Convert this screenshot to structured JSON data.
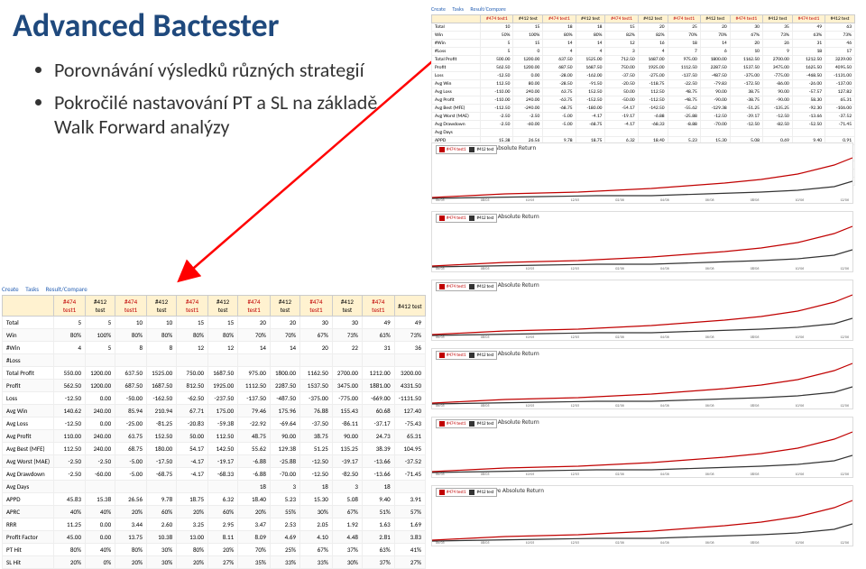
{
  "title": "Advanced Bactester",
  "bullets": [
    "Porovnávání výsledků různých strategií",
    "Pokročilé nastavování PT a SL na základě Walk Forward analýzy"
  ],
  "tabs": [
    "Create",
    "Tasks",
    "Result/Compare"
  ],
  "headers": [
    {
      "t": "#474 test1",
      "c": "red"
    },
    {
      "t": "#412 test",
      "c": "blk"
    },
    {
      "t": "#474 test1",
      "c": "red"
    },
    {
      "t": "#412 test",
      "c": "blk"
    },
    {
      "t": "#474 test1",
      "c": "red"
    },
    {
      "t": "#412 test",
      "c": "blk"
    },
    {
      "t": "#474 test1",
      "c": "red"
    },
    {
      "t": "#412 test",
      "c": "blk"
    },
    {
      "t": "#474 test1",
      "c": "red"
    },
    {
      "t": "#412 test",
      "c": "blk"
    },
    {
      "t": "#474 test1",
      "c": "red"
    },
    {
      "t": "#412 test",
      "c": "blk"
    }
  ],
  "big_rows": [
    {
      "l": "Total",
      "v": [
        "5",
        "5",
        "10",
        "10",
        "15",
        "15",
        "20",
        "20",
        "30",
        "30",
        "49",
        "49"
      ]
    },
    {
      "l": "Win",
      "v": [
        "80%",
        "100%",
        "80%",
        "80%",
        "80%",
        "80%",
        "70%",
        "70%",
        "67%",
        "73%",
        "63%",
        "73%"
      ]
    },
    {
      "l": "#Win",
      "v": [
        "4",
        "5",
        "8",
        "8",
        "12",
        "12",
        "14",
        "14",
        "20",
        "22",
        "31",
        "36"
      ]
    },
    {
      "l": "#Loss",
      "v": [
        "",
        "",
        "",
        "",
        "",
        "",
        "",
        "",
        "",
        "",
        "",
        ""
      ]
    },
    {
      "l": "Total Profit",
      "v": [
        "550.00",
        "1200.00",
        "637.50",
        "1525.00",
        "750.00",
        "1687.50",
        "975.00",
        "1800.00",
        "1162.50",
        "2700.00",
        "1212.00",
        "3200.00"
      ]
    },
    {
      "l": "Profit",
      "v": [
        "562.50",
        "1200.00",
        "687.50",
        "1687.50",
        "812.50",
        "1925.00",
        "1112.50",
        "2287.50",
        "1537.50",
        "3475.00",
        "1881.00",
        "4331.50"
      ]
    },
    {
      "l": "Loss",
      "v": [
        "-12.50",
        "0.00",
        "-50.00",
        "-162.50",
        "-62.50",
        "-237.50",
        "-137.50",
        "-487.50",
        "-375.00",
        "-775.00",
        "-669.00",
        "-1131.50"
      ]
    },
    {
      "l": "Avg Win",
      "v": [
        "140.62",
        "240.00",
        "85.94",
        "210.94",
        "67.71",
        "175.00",
        "79.46",
        "175.96",
        "76.88",
        "155.43",
        "60.68",
        "127.40"
      ]
    },
    {
      "l": "Avg Loss",
      "v": [
        "-12.50",
        "0.00",
        "-25.00",
        "-81.25",
        "-20.83",
        "-59.38",
        "-22.92",
        "-69.64",
        "-37.50",
        "-86.11",
        "-37.17",
        "-75.43"
      ]
    },
    {
      "l": "Avg Profit",
      "v": [
        "110.00",
        "240.00",
        "63.75",
        "152.50",
        "50.00",
        "112.50",
        "48.75",
        "90.00",
        "38.75",
        "90.00",
        "24.73",
        "65.31"
      ]
    },
    {
      "l": "Avg Best (MFE)",
      "v": [
        "112.50",
        "240.00",
        "68.75",
        "180.00",
        "54.17",
        "142.50",
        "55.62",
        "129.38",
        "51.25",
        "135.25",
        "38.39",
        "104.95"
      ]
    },
    {
      "l": "Avg Worst (MAE)",
      "v": [
        "-2.50",
        "-2.50",
        "-5.00",
        "-17.50",
        "-4.17",
        "-19.17",
        "-6.88",
        "-25.88",
        "-12.50",
        "-39.17",
        "-13.66",
        "-37.52"
      ]
    },
    {
      "l": "Avg Drawdown",
      "v": [
        "-2.50",
        "-60.00",
        "-5.00",
        "-68.75",
        "-4.17",
        "-68.33",
        "-6.88",
        "-70.00",
        "-12.50",
        "-82.50",
        "-13.66",
        "-71.45"
      ]
    },
    {
      "l": "Avg Days",
      "v": [
        "",
        "",
        "",
        "",
        "",
        "",
        "18",
        "3",
        "18",
        "3",
        "18",
        ""
      ]
    },
    {
      "l": "APPD",
      "v": [
        "45.83",
        "15.38",
        "26.56",
        "9.78",
        "18.75",
        "6.32",
        "18.40",
        "5.23",
        "15.30",
        "5.08",
        "9.40",
        "3.91"
      ]
    },
    {
      "l": "APRC",
      "v": [
        "40%",
        "40%",
        "20%",
        "60%",
        "20%",
        "60%",
        "20%",
        "55%",
        "30%",
        "67%",
        "51%",
        "57%"
      ]
    },
    {
      "l": "RRR",
      "v": [
        "11.25",
        "0.00",
        "3.44",
        "2.60",
        "3.25",
        "2.95",
        "3.47",
        "2.53",
        "2.05",
        "1.92",
        "1.63",
        "1.69"
      ]
    },
    {
      "l": "Profit Factor",
      "v": [
        "45.00",
        "0.00",
        "13.75",
        "10.38",
        "13.00",
        "8.11",
        "8.09",
        "4.69",
        "4.10",
        "4.48",
        "2.81",
        "3.83"
      ]
    },
    {
      "l": "PT Hit",
      "v": [
        "80%",
        "40%",
        "80%",
        "30%",
        "80%",
        "20%",
        "70%",
        "25%",
        "67%",
        "37%",
        "63%",
        "41%"
      ]
    },
    {
      "l": "SL Hit",
      "v": [
        "20%",
        "0%",
        "20%",
        "30%",
        "20%",
        "27%",
        "35%",
        "33%",
        "33%",
        "30%",
        "37%",
        "27%"
      ]
    }
  ],
  "small_rows": [
    {
      "l": "Total",
      "v": [
        "10",
        "15",
        "18",
        "18",
        "15",
        "20",
        "25",
        "20",
        "30",
        "35",
        "49",
        "63"
      ]
    },
    {
      "l": "Win",
      "v": [
        "50%",
        "100%",
        "80%",
        "80%",
        "82%",
        "82%",
        "70%",
        "70%",
        "67%",
        "73%",
        "63%",
        "73%"
      ]
    },
    {
      "l": "#Win",
      "v": [
        "5",
        "15",
        "14",
        "14",
        "12",
        "16",
        "18",
        "14",
        "20",
        "26",
        "31",
        "46"
      ]
    },
    {
      "l": "#Loss",
      "v": [
        "5",
        "0",
        "4",
        "4",
        "3",
        "4",
        "7",
        "6",
        "10",
        "9",
        "18",
        "17"
      ]
    },
    {
      "l": "Total Profit",
      "v": [
        "500.00",
        "1200.00",
        "637.50",
        "1525.00",
        "712.50",
        "1687.00",
        "975.00",
        "1800.00",
        "1162.50",
        "2700.00",
        "1212.50",
        "3239.00"
      ]
    },
    {
      "l": "Profit",
      "v": [
        "562.50",
        "1200.00",
        "687.50",
        "1687.50",
        "750.00",
        "1925.00",
        "1112.50",
        "2287.50",
        "1537.50",
        "3475.00",
        "1625.50",
        "4095.50"
      ]
    },
    {
      "l": "Loss",
      "v": [
        "-12.50",
        "0.00",
        "-28.00",
        "-162.00",
        "-37.50",
        "-275.00",
        "-137.50",
        "-487.50",
        "-375.00",
        "-775.00",
        "-468.50",
        "-1131.00"
      ]
    },
    {
      "l": "Avg Win",
      "v": [
        "112.50",
        "80.00",
        "-28.50",
        "-91.50",
        "-20.50",
        "-118.75",
        "-22.50",
        "-79.83",
        "-172.50",
        "-86.00",
        "-26.00",
        "-137.00"
      ]
    },
    {
      "l": "Avg Loss",
      "v": [
        "-110.00",
        "240.00",
        "63.75",
        "152.50",
        "50.00",
        "112.50",
        "48.75",
        "90.00",
        "38.75",
        "90.00",
        "-57.57",
        "127.82"
      ]
    },
    {
      "l": "Avg Profit",
      "v": [
        "-110.00",
        "240.00",
        "-63.75",
        "-152.50",
        "-50.00",
        "-112.50",
        "-48.75",
        "-90.00",
        "-38.75",
        "-90.00",
        "58.30",
        "65.31"
      ]
    },
    {
      "l": "Avg Best (MFE)",
      "v": [
        "-112.50",
        "-240.00",
        "-68.75",
        "-180.00",
        "-54.17",
        "-142.50",
        "-55.62",
        "-129.38",
        "-51.25",
        "-135.25",
        "-92.30",
        "-106.00"
      ]
    },
    {
      "l": "Avg Worst (MAE)",
      "v": [
        "-2.50",
        "-2.50",
        "-5.00",
        "-4.17",
        "-19.17",
        "-6.88",
        "-25.88",
        "-12.50",
        "-39.17",
        "-12.50",
        "-13.66",
        "-37.52"
      ]
    },
    {
      "l": "Avg Drawdown",
      "v": [
        "-2.50",
        "-60.00",
        "-5.00",
        "-68.75",
        "-4.17",
        "-68.33",
        "-8.88",
        "-70.00",
        "-12.50",
        "-82.50",
        "-52.50",
        "-71.45"
      ]
    },
    {
      "l": "Avg Days",
      "v": [
        "",
        "",
        "",
        "",
        "",
        "",
        "",
        "",
        "",
        "",
        "",
        ""
      ]
    },
    {
      "l": "APPD",
      "v": [
        "15.38",
        "26.56",
        "9.78",
        "18.75",
        "6.32",
        "18.40",
        "5.23",
        "15.30",
        "5.08",
        "0.69",
        "9.40",
        "0.91"
      ]
    },
    {
      "l": "APRC",
      "v": [
        "40%",
        "40%",
        "20%",
        "60%",
        "20%",
        "60%",
        "20%",
        "55%",
        "30%",
        "67%",
        "51%",
        "57%"
      ]
    },
    {
      "l": "RRR",
      "v": [
        "11.25",
        "0.00",
        "3.44",
        "2.60",
        "3.25",
        "2.95",
        "3.47",
        "2.53",
        "2.05",
        "1.92",
        "1.63",
        "1.69"
      ]
    },
    {
      "l": "Profit Factor",
      "v": [
        "45.00",
        "0.00",
        "13.75",
        "10.38",
        "13.00",
        "8.11",
        "8.09",
        "4.69",
        "4.10",
        "4.48",
        "2.81",
        "3.83"
      ]
    },
    {
      "l": "PT Hit",
      "v": [
        "80%",
        "40%",
        "80%",
        "30%",
        "80%",
        "20%",
        "70%",
        "25%",
        "67%",
        "37%",
        "63%",
        "41%"
      ]
    },
    {
      "l": "SL Hit",
      "v": [
        "20%",
        "0%",
        "20%",
        "30%",
        "20%",
        "27%",
        "35%",
        "33%",
        "33%",
        "30%",
        "37%",
        "27%"
      ]
    }
  ],
  "charts": [
    {
      "title": "5 Years   Cumulative Absolute Return"
    },
    {
      "title": "10 Years   Cumulative Absolute Return"
    },
    {
      "title": "15 Years   Cumulative Absolute Return"
    },
    {
      "title": "20 Years   Cumulative Absolute Return"
    },
    {
      "title": "30 Years   Cumulative Absolute Return"
    },
    {
      "title": "Max Years   Cumulative Absolute Return"
    }
  ],
  "legend": {
    "a": "#474 test1",
    "b": "#412 test"
  },
  "colors": {
    "red": "#c00000",
    "black": "#333333",
    "grid": "#e8e8e8",
    "header_bg": "#fff2d0",
    "title": "#1f497d",
    "link": "#2a63b5",
    "arrow": "#ff0000"
  },
  "chart_lines": {
    "red": "0,48 40,46 80,44 120,43 160,42 200,40 240,38 280,35 320,32 360,28 400,22 440,12 460,4",
    "blk": "0,49 60,48 120,47 180,46 240,46 300,44 360,42 400,40 440,36 460,30"
  },
  "xaxis_ticks": [
    "06/05",
    "08/05",
    "10/05",
    "12/05",
    "02/06",
    "04/06",
    "06/06",
    "08/06",
    "10/06",
    "12/06"
  ]
}
